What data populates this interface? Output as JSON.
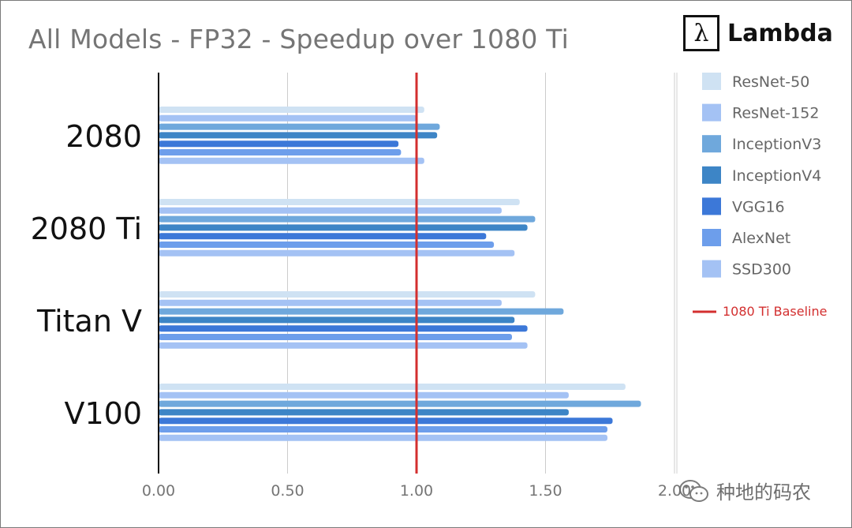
{
  "chart_data": {
    "type": "bar",
    "orientation": "horizontal",
    "title": "All Models - FP32 - Speedup over 1080 Ti",
    "categories": [
      "2080",
      "2080 Ti",
      "Titan V",
      "V100"
    ],
    "series": [
      {
        "name": "ResNet-50",
        "color": "#cfe2f3",
        "values": [
          1.03,
          1.4,
          1.46,
          1.81
        ]
      },
      {
        "name": "ResNet-152",
        "color": "#a4c2f4",
        "values": [
          1.0,
          1.33,
          1.33,
          1.59
        ]
      },
      {
        "name": "InceptionV3",
        "color": "#6fa8dc",
        "values": [
          1.09,
          1.46,
          1.57,
          1.87
        ]
      },
      {
        "name": "InceptionV4",
        "color": "#3d85c6",
        "values": [
          1.08,
          1.43,
          1.38,
          1.59
        ]
      },
      {
        "name": "VGG16",
        "color": "#3c78d8",
        "values": [
          0.93,
          1.27,
          1.43,
          1.76
        ]
      },
      {
        "name": "AlexNet",
        "color": "#6d9eeb",
        "values": [
          0.94,
          1.3,
          1.37,
          1.74
        ]
      },
      {
        "name": "SSD300",
        "color": "#a4c2f4",
        "values": [
          1.03,
          1.38,
          1.43,
          1.74
        ]
      }
    ],
    "xlim": [
      0,
      2.0
    ],
    "x_ticks": [
      "0.00",
      "0.50",
      "1.00",
      "1.50",
      "2.00"
    ],
    "baseline": {
      "label": "1080 Ti Baseline",
      "value": 1.0,
      "color": "#d32f2f"
    },
    "grid": true,
    "legend_position": "right"
  },
  "branding": {
    "logo_symbol": "λ",
    "logo_text": "Lambda"
  },
  "watermark": {
    "text": "种地的码农"
  }
}
